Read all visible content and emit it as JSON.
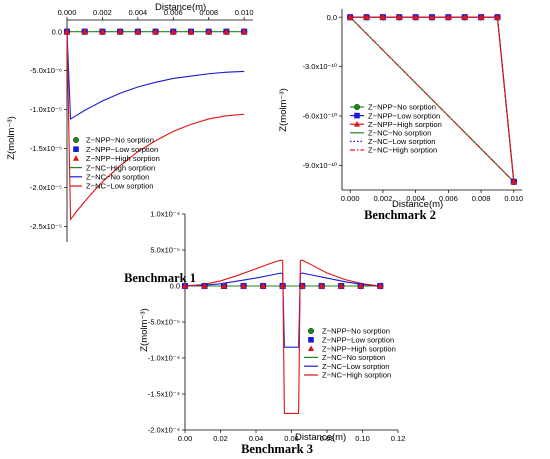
{
  "chart_data": [
    {
      "type": "line",
      "caption": "Benchmark 1",
      "xlabel": "Distance(m)",
      "ylabel": "Z(molm⁻³)",
      "xlim": [
        0,
        0.0105
      ],
      "ylim": [
        -2.7e-05,
        1.5e-06
      ],
      "xticks": [
        0.0,
        0.002,
        0.004,
        0.006,
        0.008,
        0.01
      ],
      "xtick_labels": [
        "0.000",
        "0.002",
        "0.004",
        "0.006",
        "0.008",
        "0.010"
      ],
      "yticks": [
        0.0,
        -5e-06,
        -1e-05,
        -1.5e-05,
        -2e-05,
        -2.5e-05
      ],
      "ytick_labels": [
        "0.0",
        "-5.0x10⁻⁶",
        "-1.0x10⁻⁵",
        "-1.5x10⁻⁵",
        "-2.0x10⁻⁵",
        "-2.5x10⁻⁵"
      ],
      "legend_position": "lower-left",
      "series": [
        {
          "name": "Z−NPP−No sorption",
          "kind": "marker",
          "marker": "circle",
          "color": "#1a8a1a",
          "x": [
            0,
            0.001,
            0.002,
            0.003,
            0.004,
            0.005,
            0.006,
            0.007,
            0.008,
            0.009,
            0.01
          ],
          "y": [
            0,
            0,
            0,
            0,
            0,
            0,
            0,
            0,
            0,
            0,
            0
          ]
        },
        {
          "name": "Z−NPP−Low sorption",
          "kind": "marker",
          "marker": "square",
          "color": "#1a1ad6",
          "x": [
            0,
            0.001,
            0.002,
            0.003,
            0.004,
            0.005,
            0.006,
            0.007,
            0.008,
            0.009,
            0.01
          ],
          "y": [
            0,
            0,
            0,
            0,
            0,
            0,
            0,
            0,
            0,
            0,
            0
          ]
        },
        {
          "name": "Z−NPP−High sorption",
          "kind": "marker",
          "marker": "triangle",
          "color": "#e01414",
          "x": [
            0,
            0.001,
            0.002,
            0.003,
            0.004,
            0.005,
            0.006,
            0.007,
            0.008,
            0.009,
            0.01
          ],
          "y": [
            0,
            0,
            0,
            0,
            0,
            0,
            0,
            0,
            0,
            0,
            0
          ]
        },
        {
          "name": "Z−NC−High sorption",
          "kind": "line",
          "dash": "",
          "color": "#1a8a1a",
          "x": [
            0,
            0.01
          ],
          "y": [
            0,
            0
          ]
        },
        {
          "name": "Z−NC−No sorption",
          "kind": "line",
          "dash": "",
          "color": "#1a1ad6",
          "x": [
            0,
            0.0002,
            0.0005,
            0.001,
            0.0015,
            0.002,
            0.003,
            0.004,
            0.005,
            0.006,
            0.007,
            0.008,
            0.009,
            0.01
          ],
          "y": [
            0,
            -1.12e-05,
            -1.08e-05,
            -1.01e-05,
            -9.5e-06,
            -8.9e-06,
            -7.9e-06,
            -7.1e-06,
            -6.5e-06,
            -6e-06,
            -5.7e-06,
            -5.4e-06,
            -5.2e-06,
            -5.1e-06
          ]
        },
        {
          "name": "Z−NC−Low sorption",
          "kind": "line",
          "dash": "",
          "color": "#e01414",
          "x": [
            0,
            0.0002,
            0.0005,
            0.001,
            0.0015,
            0.002,
            0.003,
            0.004,
            0.005,
            0.006,
            0.007,
            0.008,
            0.009,
            0.01
          ],
          "y": [
            0,
            -2.41e-05,
            -2.32e-05,
            -2.18e-05,
            -2.05e-05,
            -1.93e-05,
            -1.72e-05,
            -1.54e-05,
            -1.4e-05,
            -1.28e-05,
            -1.19e-05,
            -1.12e-05,
            -1.08e-05,
            -1.06e-05
          ]
        }
      ]
    },
    {
      "type": "line",
      "caption": "Benchmark 2",
      "xlabel": "Distance(m)",
      "ylabel": "Z(molm⁻³)",
      "xlim": [
        -0.0005,
        0.0105
      ],
      "ylim": [
        -1.05e-09,
        5e-11
      ],
      "xticks": [
        0.0,
        0.002,
        0.004,
        0.006,
        0.008,
        0.01
      ],
      "xtick_labels": [
        "0.000",
        "0.002",
        "0.004",
        "0.006",
        "0.008",
        "0.010"
      ],
      "yticks": [
        0.0,
        -3e-10,
        -6e-10,
        -9e-10
      ],
      "ytick_labels": [
        "0.0",
        "-3.0x10⁻¹⁰",
        "-6.0x10⁻¹⁰",
        "-9.0x10⁻¹⁰"
      ],
      "legend_position": "upper-left",
      "series": [
        {
          "name": "Z−NPP−No sorption",
          "kind": "linemarker",
          "marker": "circle",
          "color": "#1a8a1a",
          "dash": "",
          "x": [
            0,
            0.001,
            0.002,
            0.003,
            0.004,
            0.005,
            0.006,
            0.007,
            0.008,
            0.009,
            0.01
          ],
          "y": [
            0,
            0,
            0,
            0,
            0,
            0,
            0,
            0,
            0,
            0,
            -1e-09
          ]
        },
        {
          "name": "Z−NPP−Low sorption",
          "kind": "linemarker",
          "marker": "square",
          "color": "#1a1ad6",
          "dash": "",
          "x": [
            0,
            0.001,
            0.002,
            0.003,
            0.004,
            0.005,
            0.006,
            0.007,
            0.008,
            0.009,
            0.01
          ],
          "y": [
            0,
            0,
            0,
            0,
            0,
            0,
            0,
            0,
            0,
            0,
            -1e-09
          ]
        },
        {
          "name": "Z−NPP−High sorption",
          "kind": "linemarker",
          "marker": "triangle",
          "color": "#e01414",
          "dash": "",
          "x": [
            0,
            0.001,
            0.002,
            0.003,
            0.004,
            0.005,
            0.006,
            0.007,
            0.008,
            0.009,
            0.01
          ],
          "y": [
            0,
            0,
            0,
            0,
            0,
            0,
            0,
            0,
            0,
            0,
            -1e-09
          ]
        },
        {
          "name": "Z−NC−No sorption",
          "kind": "line",
          "dash": "",
          "color": "#1a8a1a",
          "x": [
            0,
            0.01
          ],
          "y": [
            0,
            -1e-09
          ]
        },
        {
          "name": "Z−NC−Low sorption",
          "kind": "line",
          "dash": "1.5,2",
          "color": "#1a1ad6",
          "x": [
            0,
            0.01
          ],
          "y": [
            0,
            -1e-09
          ]
        },
        {
          "name": "Z−NC−High sorption",
          "kind": "line",
          "dash": "5,2,1.5,2",
          "color": "#e01414",
          "x": [
            0,
            0.01
          ],
          "y": [
            0,
            -1e-09
          ]
        }
      ]
    },
    {
      "type": "line",
      "caption": "Benchmark 3",
      "xlabel": "Distance(m)",
      "ylabel": "Z(molm⁻³)",
      "xlim": [
        0,
        0.12
      ],
      "ylim": [
        -0.0002,
        0.0001
      ],
      "xticks": [
        0.0,
        0.02,
        0.04,
        0.06,
        0.08,
        0.1,
        0.12
      ],
      "xtick_labels": [
        "0.00",
        "0.02",
        "0.04",
        "0.06",
        "0.08",
        "0.10",
        "0.12"
      ],
      "yticks": [
        0.0001,
        5e-05,
        0.0,
        -5e-05,
        -0.0001,
        -0.00015,
        -0.0002
      ],
      "ytick_labels": [
        "1.0x10⁻⁴",
        "5.0x10⁻⁵",
        "0.0",
        "-5.0x10⁻⁵",
        "-1.0x10⁻⁴",
        "-1.5x10⁻⁴",
        "-2.0x10⁻⁴"
      ],
      "legend_position": "lower-center",
      "series": [
        {
          "name": "Z−NPP−No sorption",
          "kind": "marker",
          "marker": "circle",
          "color": "#1a8a1a",
          "x": [
            0,
            0.011,
            0.022,
            0.033,
            0.044,
            0.055,
            0.066,
            0.077,
            0.088,
            0.099,
            0.11
          ],
          "y": [
            0,
            0,
            0,
            0,
            0,
            0,
            0,
            0,
            0,
            0,
            0
          ]
        },
        {
          "name": "Z−NPP−Low sorption",
          "kind": "marker",
          "marker": "square",
          "color": "#1a1ad6",
          "x": [
            0,
            0.011,
            0.022,
            0.033,
            0.044,
            0.055,
            0.066,
            0.077,
            0.088,
            0.099,
            0.11
          ],
          "y": [
            0,
            0,
            0,
            0,
            0,
            0,
            0,
            0,
            0,
            0,
            0
          ]
        },
        {
          "name": "Z−NPP−High sorption",
          "kind": "marker",
          "marker": "triangle",
          "color": "#e01414",
          "x": [
            0,
            0.011,
            0.022,
            0.033,
            0.044,
            0.055,
            0.066,
            0.077,
            0.088,
            0.099,
            0.11
          ],
          "y": [
            0,
            0,
            0,
            0,
            0,
            0,
            0,
            0,
            0,
            0,
            0
          ]
        },
        {
          "name": "Z−NC−No sorption",
          "kind": "line",
          "dash": "",
          "color": "#1a8a1a",
          "x": [
            0,
            0.11
          ],
          "y": [
            0,
            0
          ]
        },
        {
          "name": "Z−NC−Low sorption",
          "kind": "line",
          "dash": "",
          "color": "#1a1ad6",
          "x": [
            0,
            0.01,
            0.02,
            0.03,
            0.04,
            0.05,
            0.054,
            0.055,
            0.056,
            0.057,
            0.058,
            0.059,
            0.06,
            0.061,
            0.062,
            0.063,
            0.064,
            0.065,
            0.066,
            0.07,
            0.08,
            0.09,
            0.1,
            0.11
          ],
          "y": [
            0,
            1e-06,
            3e-06,
            7e-06,
            1.1e-05,
            1.6e-05,
            1.8e-05,
            1.7e-05,
            -8.5e-05,
            -8.5e-05,
            -8.5e-05,
            -8.5e-05,
            -8.5e-05,
            -8.5e-05,
            -8.5e-05,
            -8.5e-05,
            -8.5e-05,
            1.7e-05,
            1.8e-05,
            1.6e-05,
            1.1e-05,
            6e-06,
            2e-06,
            0
          ]
        },
        {
          "name": "Z−NC−High sorption",
          "kind": "line",
          "dash": "",
          "color": "#e01414",
          "x": [
            0,
            0.01,
            0.02,
            0.03,
            0.04,
            0.05,
            0.054,
            0.055,
            0.056,
            0.057,
            0.058,
            0.059,
            0.06,
            0.061,
            0.062,
            0.063,
            0.064,
            0.065,
            0.066,
            0.07,
            0.08,
            0.09,
            0.1,
            0.11
          ],
          "y": [
            0,
            2e-06,
            7e-06,
            1.5e-05,
            2.4e-05,
            3.3e-05,
            3.6e-05,
            3.5e-05,
            -0.000177,
            -0.000177,
            -0.000177,
            -0.000177,
            -0.000177,
            -0.000177,
            -0.000177,
            -0.000177,
            -0.000177,
            3.5e-05,
            3.6e-05,
            3.1e-05,
            1.8e-05,
            9e-06,
            3e-06,
            0
          ]
        }
      ]
    }
  ]
}
